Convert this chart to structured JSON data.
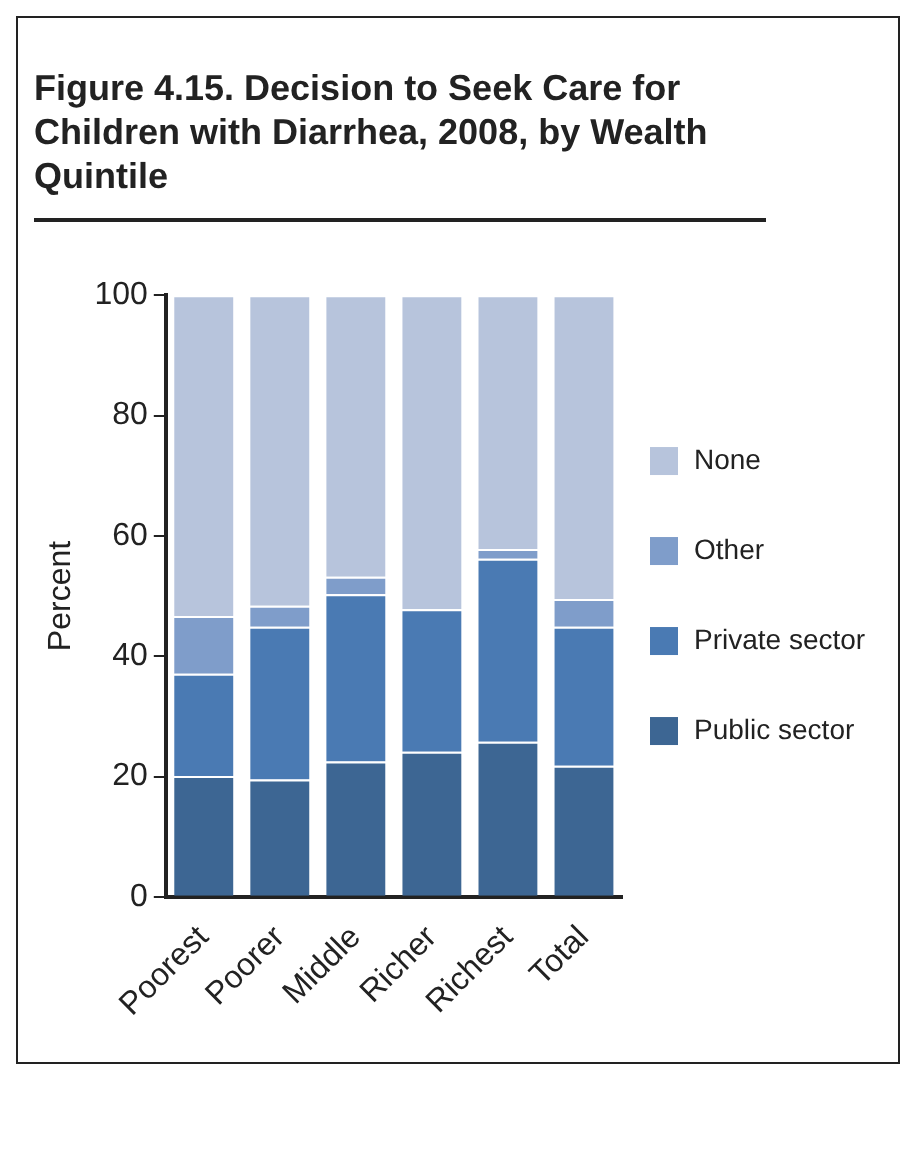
{
  "chart_data": {
    "type": "bar",
    "title": "Figure 4.15. Decision to Seek Care for Children with Diarrhea, 2008, by Wealth Quintile",
    "ylabel": "Percent",
    "categories": [
      "Poorest",
      "Poorer",
      "Middle",
      "Richer",
      "Richest",
      "Total"
    ],
    "series": [
      {
        "name": "Public sector",
        "color": "#3d6693",
        "values": [
          20.1,
          19.5,
          22.5,
          24.1,
          25.8,
          21.8
        ]
      },
      {
        "name": "Private sector",
        "color": "#4a7ab3",
        "values": [
          17.0,
          25.4,
          27.8,
          23.7,
          30.4,
          23.1
        ]
      },
      {
        "name": "Other",
        "color": "#7f9dca",
        "values": [
          9.6,
          3.5,
          2.9,
          0,
          1.6,
          4.6
        ]
      },
      {
        "name": "None",
        "color": "#b7c4dc",
        "values": [
          53.3,
          51.6,
          46.8,
          52.2,
          42.2,
          50.5
        ]
      }
    ],
    "stacked": true,
    "ylim": [
      0,
      100
    ],
    "yticks": [
      0,
      20,
      40,
      60,
      80,
      100
    ],
    "grid": false,
    "legend": "right"
  }
}
